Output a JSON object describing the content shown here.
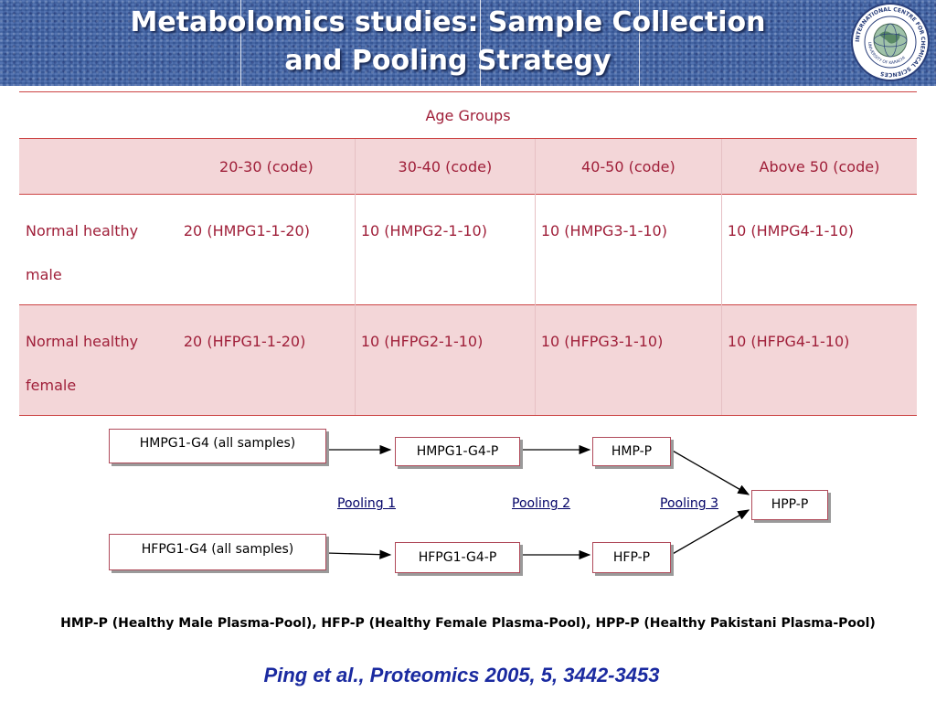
{
  "header": {
    "title_line1": "Metabolomics studies: Sample Collection",
    "title_line2": "and Pooling Strategy",
    "logo_text_outer": "INTERNATIONAL CENTRE FOR CHEMICAL SCIENCES",
    "logo_text_inner": "UNIVERSITY OF KARACHI"
  },
  "table": {
    "group_header": "Age Groups",
    "columns": [
      "20-30 (code)",
      "30-40 (code)",
      "40-50 (code)",
      "Above 50 (code)"
    ],
    "rows": [
      {
        "label_line1": "Normal healthy",
        "label_line2": "male",
        "cells": [
          "20 (HMPG1-1-20)",
          "10 (HMPG2-1-10)",
          "10 (HMPG3-1-10)",
          "10 (HMPG4-1-10)"
        ]
      },
      {
        "label_line1": "Normal healthy",
        "label_line2": "female",
        "cells": [
          "20 (HFPG1-1-20)",
          "10 (HFPG2-1-10)",
          "10 (HFPG3-1-10)",
          "10 (HFPG4-1-10)"
        ]
      }
    ]
  },
  "diagram": {
    "hmpg_all": "HMPG1-G4 (all samples)",
    "hfpg_all": "HFPG1-G4 (all samples)",
    "hmpg_pool": "HMPG1-G4-P",
    "hfpg_pool": "HFPG1-G4-P",
    "hmp": "HMP-P",
    "hfp": "HFP-P",
    "hpp": "HPP-P",
    "pooling1": "Pooling 1",
    "pooling2": "Pooling 2",
    "pooling3": "Pooling 3"
  },
  "legend": "HMP-P (Healthy Male Plasma-Pool), HFP-P (Healthy Female Plasma-Pool), HPP-P (Healthy Pakistani Plasma-Pool)",
  "citation": "Ping et al., Proteomics 2005, 5, 3442-3453",
  "colors": {
    "banner": "#3f63a8",
    "table_text": "#a0203a",
    "table_band": "#f3d6d8",
    "citation": "#1a2aa0"
  }
}
